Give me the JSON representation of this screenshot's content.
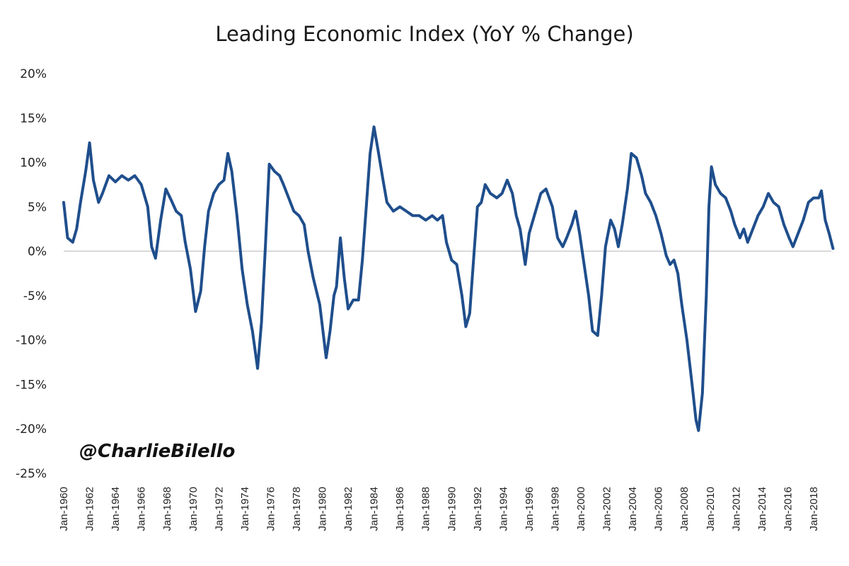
{
  "chart_data": {
    "type": "line",
    "title": "Leading Economic Index (YoY % Change)",
    "xlabel": "",
    "ylabel": "",
    "ylim": [
      -25,
      20
    ],
    "xlim": [
      1960,
      2019.6
    ],
    "yticks": [
      "20%",
      "15%",
      "10%",
      "5%",
      "0%",
      "-5%",
      "-10%",
      "-15%",
      "-20%",
      "-25%"
    ],
    "ytick_values": [
      20,
      15,
      10,
      5,
      0,
      -5,
      -10,
      -15,
      -20,
      -25
    ],
    "xticks": [
      "Jan-1960",
      "Jan-1962",
      "Jan-1964",
      "Jan-1966",
      "Jan-1968",
      "Jan-1970",
      "Jan-1972",
      "Jan-1974",
      "Jan-1976",
      "Jan-1978",
      "Jan-1980",
      "Jan-1982",
      "Jan-1984",
      "Jan-1986",
      "Jan-1988",
      "Jan-1990",
      "Jan-1992",
      "Jan-1994",
      "Jan-1996",
      "Jan-1998",
      "Jan-2000",
      "Jan-2002",
      "Jan-2004",
      "Jan-2006",
      "Jan-2008",
      "Jan-2010",
      "Jan-2012",
      "Jan-2014",
      "Jan-2016",
      "Jan-2018"
    ],
    "xtick_values": [
      1960,
      1962,
      1964,
      1966,
      1968,
      1970,
      1972,
      1974,
      1976,
      1978,
      1980,
      1982,
      1984,
      1986,
      1988,
      1990,
      1992,
      1994,
      1996,
      1998,
      2000,
      2002,
      2004,
      2006,
      2008,
      2010,
      2012,
      2014,
      2016,
      2018
    ],
    "grid": false,
    "zero_line": true,
    "legend": "none",
    "series": [
      {
        "name": "Leading Economic Index YoY % Change",
        "color": "#1f4e8c",
        "x": [
          1960.0,
          1960.3,
          1960.7,
          1961.0,
          1961.3,
          1961.7,
          1962.0,
          1962.3,
          1962.7,
          1963.0,
          1963.5,
          1964.0,
          1964.5,
          1965.0,
          1965.5,
          1966.0,
          1966.5,
          1966.8,
          1967.1,
          1967.5,
          1967.9,
          1968.3,
          1968.7,
          1969.1,
          1969.4,
          1969.8,
          1970.2,
          1970.6,
          1970.9,
          1971.2,
          1971.6,
          1972.0,
          1972.4,
          1972.7,
          1973.0,
          1973.4,
          1973.8,
          1974.2,
          1974.6,
          1975.0,
          1975.3,
          1975.6,
          1975.9,
          1976.3,
          1976.7,
          1977.0,
          1977.4,
          1977.8,
          1978.2,
          1978.6,
          1978.9,
          1979.3,
          1979.8,
          1980.3,
          1980.6,
          1980.9,
          1981.1,
          1981.4,
          1981.7,
          1982.0,
          1982.4,
          1982.8,
          1983.1,
          1983.4,
          1983.7,
          1984.0,
          1984.3,
          1984.7,
          1985.0,
          1985.5,
          1986.0,
          1986.5,
          1987.0,
          1987.5,
          1988.0,
          1988.5,
          1988.9,
          1989.3,
          1989.6,
          1990.0,
          1990.4,
          1990.8,
          1991.1,
          1991.4,
          1991.7,
          1992.0,
          1992.3,
          1992.6,
          1993.0,
          1993.5,
          1993.9,
          1994.3,
          1994.7,
          1995.0,
          1995.3,
          1995.7,
          1996.0,
          1996.4,
          1996.9,
          1997.3,
          1997.8,
          1998.2,
          1998.6,
          1998.9,
          1999.3,
          1999.6,
          1999.9,
          2000.2,
          2000.6,
          2000.9,
          2001.3,
          2001.6,
          2001.9,
          2002.3,
          2002.6,
          2002.9,
          2003.2,
          2003.6,
          2003.9,
          2004.3,
          2004.7,
          2005.0,
          2005.4,
          2005.8,
          2006.2,
          2006.6,
          2006.9,
          2007.2,
          2007.5,
          2007.8,
          2008.2,
          2008.6,
          2008.9,
          2009.1,
          2009.4,
          2009.7,
          2009.9,
          2010.1,
          2010.4,
          2010.8,
          2011.2,
          2011.6,
          2011.9,
          2012.3,
          2012.6,
          2012.9,
          2013.3,
          2013.7,
          2014.1,
          2014.5,
          2014.9,
          2015.3,
          2015.7,
          2016.1,
          2016.4,
          2016.8,
          2017.2,
          2017.6,
          2018.0,
          2018.4,
          2018.6,
          2018.9,
          2019.2,
          2019.5
        ],
        "y": [
          5.5,
          1.5,
          1.0,
          2.5,
          5.5,
          9.0,
          12.2,
          8.0,
          5.5,
          6.5,
          8.5,
          7.8,
          8.5,
          8.0,
          8.5,
          7.5,
          5.0,
          0.5,
          -0.8,
          3.5,
          7.0,
          5.8,
          4.5,
          4.0,
          1.0,
          -2.0,
          -6.8,
          -4.5,
          0.5,
          4.5,
          6.5,
          7.5,
          8.0,
          11.0,
          9.0,
          4.0,
          -2.0,
          -6.0,
          -9.0,
          -13.2,
          -8.0,
          0.5,
          9.8,
          9.0,
          8.5,
          7.5,
          6.0,
          4.5,
          4.0,
          3.0,
          0.0,
          -3.0,
          -6.0,
          -12.0,
          -9.0,
          -5.0,
          -4.0,
          1.5,
          -3.0,
          -6.5,
          -5.5,
          -5.5,
          -1.0,
          5.0,
          11.0,
          14.0,
          11.5,
          8.0,
          5.5,
          4.5,
          5.0,
          4.5,
          4.0,
          4.0,
          3.5,
          4.0,
          3.5,
          4.0,
          1.0,
          -1.0,
          -1.5,
          -5.0,
          -8.5,
          -7.0,
          -1.0,
          5.0,
          5.5,
          7.5,
          6.5,
          6.0,
          6.5,
          8.0,
          6.5,
          4.0,
          2.5,
          -1.5,
          2.0,
          4.0,
          6.5,
          7.0,
          5.0,
          1.5,
          0.5,
          1.5,
          3.0,
          4.5,
          2.0,
          -1.0,
          -5.0,
          -9.0,
          -9.5,
          -5.0,
          0.5,
          3.5,
          2.5,
          0.5,
          3.0,
          7.0,
          11.0,
          10.5,
          8.5,
          6.5,
          5.5,
          4.0,
          2.0,
          -0.5,
          -1.5,
          -1.0,
          -2.5,
          -6.0,
          -10.0,
          -15.0,
          -19.0,
          -20.2,
          -16.0,
          -5.0,
          5.0,
          9.5,
          7.5,
          6.5,
          6.0,
          4.5,
          3.0,
          1.5,
          2.5,
          1.0,
          2.5,
          4.0,
          5.0,
          6.5,
          5.5,
          5.0,
          3.0,
          1.5,
          0.5,
          2.0,
          3.5,
          5.5,
          6.0,
          6.0,
          6.8,
          3.5,
          2.0,
          0.3
        ]
      }
    ],
    "watermark": "@CharlieBilello"
  }
}
